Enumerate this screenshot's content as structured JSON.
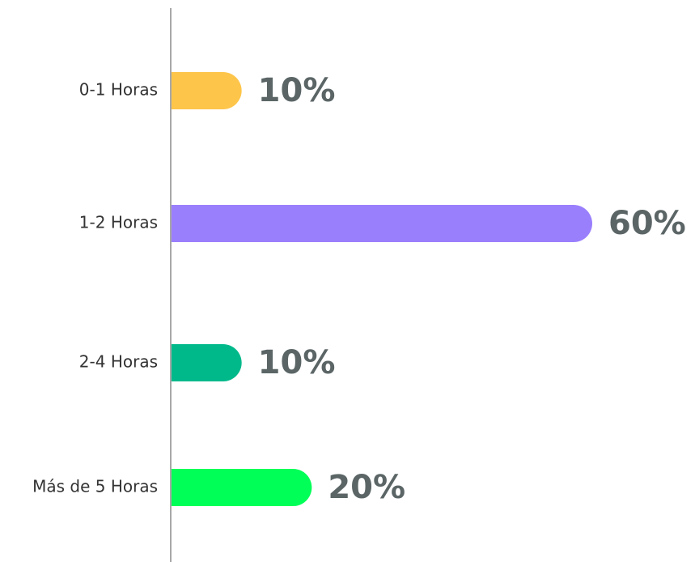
{
  "chart_data": {
    "type": "bar",
    "orientation": "horizontal",
    "categories": [
      "0-1 Horas",
      "1-2 Horas",
      "2-4 Horas",
      "Más de 5 Horas"
    ],
    "values": [
      10,
      60,
      10,
      20
    ],
    "value_labels": [
      "10%",
      "60%",
      "10%",
      "20%"
    ],
    "colors": [
      "#fdc54a",
      "#9a7ffd",
      "#00b98b",
      "#00ff57"
    ]
  }
}
